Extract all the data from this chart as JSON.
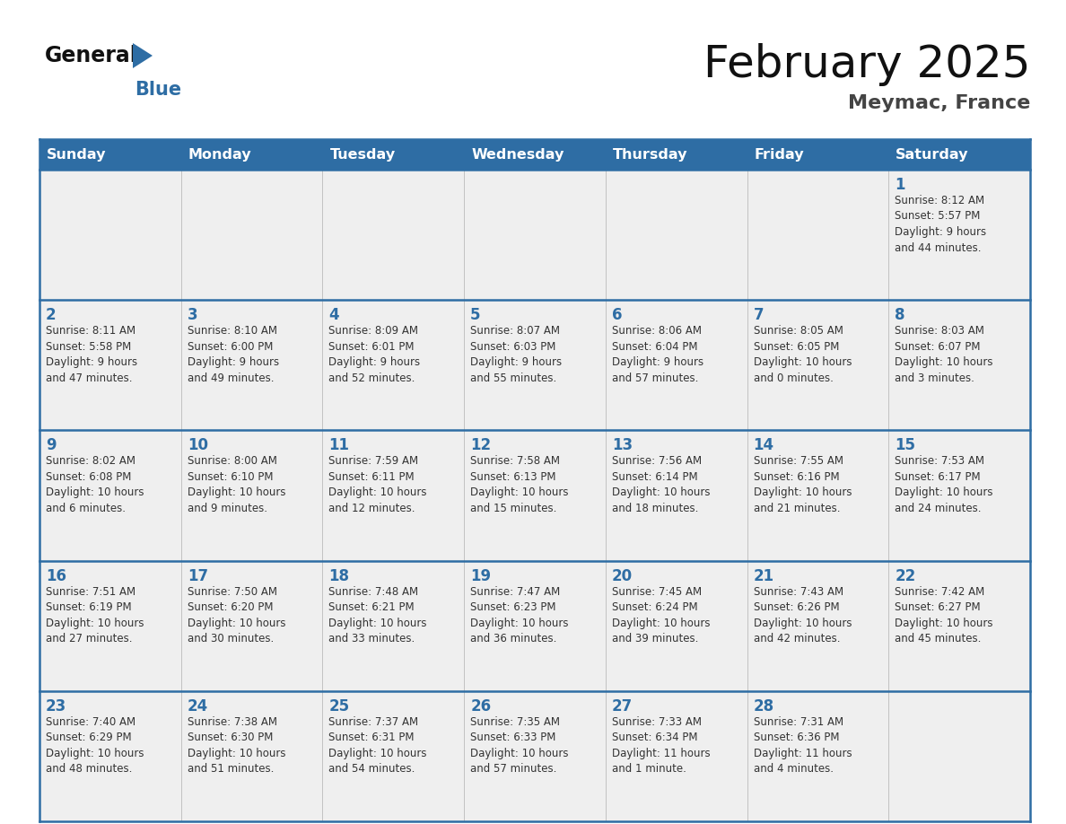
{
  "title": "February 2025",
  "subtitle": "Meymac, France",
  "days_of_week": [
    "Sunday",
    "Monday",
    "Tuesday",
    "Wednesday",
    "Thursday",
    "Friday",
    "Saturday"
  ],
  "header_bg": "#2E6DA4",
  "header_text": "#FFFFFF",
  "cell_bg": "#EFEFEF",
  "day_num_color": "#2E6DA4",
  "text_color": "#333333",
  "calendar_data": [
    [
      null,
      null,
      null,
      null,
      null,
      null,
      {
        "day": "1",
        "sunrise": "8:12 AM",
        "sunset": "5:57 PM",
        "daylight": "9 hours\nand 44 minutes."
      }
    ],
    [
      {
        "day": "2",
        "sunrise": "8:11 AM",
        "sunset": "5:58 PM",
        "daylight": "9 hours\nand 47 minutes."
      },
      {
        "day": "3",
        "sunrise": "8:10 AM",
        "sunset": "6:00 PM",
        "daylight": "9 hours\nand 49 minutes."
      },
      {
        "day": "4",
        "sunrise": "8:09 AM",
        "sunset": "6:01 PM",
        "daylight": "9 hours\nand 52 minutes."
      },
      {
        "day": "5",
        "sunrise": "8:07 AM",
        "sunset": "6:03 PM",
        "daylight": "9 hours\nand 55 minutes."
      },
      {
        "day": "6",
        "sunrise": "8:06 AM",
        "sunset": "6:04 PM",
        "daylight": "9 hours\nand 57 minutes."
      },
      {
        "day": "7",
        "sunrise": "8:05 AM",
        "sunset": "6:05 PM",
        "daylight": "10 hours\nand 0 minutes."
      },
      {
        "day": "8",
        "sunrise": "8:03 AM",
        "sunset": "6:07 PM",
        "daylight": "10 hours\nand 3 minutes."
      }
    ],
    [
      {
        "day": "9",
        "sunrise": "8:02 AM",
        "sunset": "6:08 PM",
        "daylight": "10 hours\nand 6 minutes."
      },
      {
        "day": "10",
        "sunrise": "8:00 AM",
        "sunset": "6:10 PM",
        "daylight": "10 hours\nand 9 minutes."
      },
      {
        "day": "11",
        "sunrise": "7:59 AM",
        "sunset": "6:11 PM",
        "daylight": "10 hours\nand 12 minutes."
      },
      {
        "day": "12",
        "sunrise": "7:58 AM",
        "sunset": "6:13 PM",
        "daylight": "10 hours\nand 15 minutes."
      },
      {
        "day": "13",
        "sunrise": "7:56 AM",
        "sunset": "6:14 PM",
        "daylight": "10 hours\nand 18 minutes."
      },
      {
        "day": "14",
        "sunrise": "7:55 AM",
        "sunset": "6:16 PM",
        "daylight": "10 hours\nand 21 minutes."
      },
      {
        "day": "15",
        "sunrise": "7:53 AM",
        "sunset": "6:17 PM",
        "daylight": "10 hours\nand 24 minutes."
      }
    ],
    [
      {
        "day": "16",
        "sunrise": "7:51 AM",
        "sunset": "6:19 PM",
        "daylight": "10 hours\nand 27 minutes."
      },
      {
        "day": "17",
        "sunrise": "7:50 AM",
        "sunset": "6:20 PM",
        "daylight": "10 hours\nand 30 minutes."
      },
      {
        "day": "18",
        "sunrise": "7:48 AM",
        "sunset": "6:21 PM",
        "daylight": "10 hours\nand 33 minutes."
      },
      {
        "day": "19",
        "sunrise": "7:47 AM",
        "sunset": "6:23 PM",
        "daylight": "10 hours\nand 36 minutes."
      },
      {
        "day": "20",
        "sunrise": "7:45 AM",
        "sunset": "6:24 PM",
        "daylight": "10 hours\nand 39 minutes."
      },
      {
        "day": "21",
        "sunrise": "7:43 AM",
        "sunset": "6:26 PM",
        "daylight": "10 hours\nand 42 minutes."
      },
      {
        "day": "22",
        "sunrise": "7:42 AM",
        "sunset": "6:27 PM",
        "daylight": "10 hours\nand 45 minutes."
      }
    ],
    [
      {
        "day": "23",
        "sunrise": "7:40 AM",
        "sunset": "6:29 PM",
        "daylight": "10 hours\nand 48 minutes."
      },
      {
        "day": "24",
        "sunrise": "7:38 AM",
        "sunset": "6:30 PM",
        "daylight": "10 hours\nand 51 minutes."
      },
      {
        "day": "25",
        "sunrise": "7:37 AM",
        "sunset": "6:31 PM",
        "daylight": "10 hours\nand 54 minutes."
      },
      {
        "day": "26",
        "sunrise": "7:35 AM",
        "sunset": "6:33 PM",
        "daylight": "10 hours\nand 57 minutes."
      },
      {
        "day": "27",
        "sunrise": "7:33 AM",
        "sunset": "6:34 PM",
        "daylight": "11 hours\nand 1 minute."
      },
      {
        "day": "28",
        "sunrise": "7:31 AM",
        "sunset": "6:36 PM",
        "daylight": "11 hours\nand 4 minutes."
      },
      null
    ]
  ]
}
